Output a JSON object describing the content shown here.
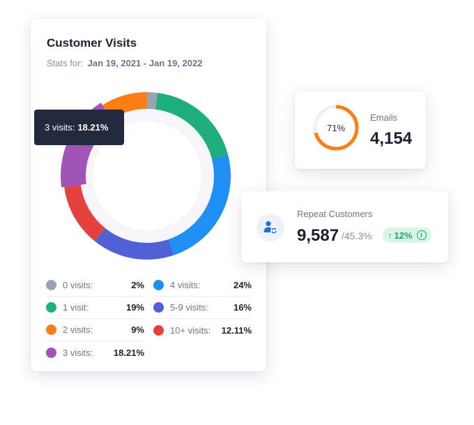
{
  "visits_card": {
    "title": "Customer Visits",
    "stats_prefix": "Stats for:",
    "date_range": "Jan 19, 2021 - Jan 19, 2022"
  },
  "tooltip": {
    "label": "3 visits:",
    "value": "18.21%"
  },
  "chart_data": {
    "type": "pie",
    "style": "donut",
    "title": "",
    "highlighted": "3 visits",
    "categories": [
      "0 visits",
      "1 visit",
      "4 visits",
      "5-9 visits",
      "10+ visits",
      "3 visits",
      "2 visits"
    ],
    "values": [
      2,
      19,
      24,
      16,
      12.11,
      18.21,
      9
    ],
    "colors": [
      "#9aa3b4",
      "#1eaf7c",
      "#1f8ff5",
      "#5160d6",
      "#e5423f",
      "#a155b9",
      "#fd7e15"
    ]
  },
  "legend": {
    "left": [
      {
        "label": "0 visits:",
        "value": "2%",
        "color": "#9aa3b4"
      },
      {
        "label": "1 visit:",
        "value": "19%",
        "color": "#1eaf7c"
      },
      {
        "label": "2 visits:",
        "value": "9%",
        "color": "#fd7e15"
      },
      {
        "label": "3 visits:",
        "value": "18.21%",
        "color": "#a155b9"
      }
    ],
    "right": [
      {
        "label": "4 visits:",
        "value": "24%",
        "color": "#1f8ff5"
      },
      {
        "label": "5-9 visits:",
        "value": "16%",
        "color": "#5160d6"
      },
      {
        "label": "10+ visits:",
        "value": "12.11%",
        "color": "#e5423f"
      }
    ]
  },
  "emails": {
    "label": "Emails",
    "value": "4,154",
    "percent_label": "71%",
    "percent": 71,
    "ring_color": "#fd7e15"
  },
  "repeat": {
    "label": "Repeat Customers",
    "value": "9,587",
    "sub": "/45.3%",
    "badge_arrow": "↑",
    "badge_value": "12%",
    "badge_info": "i",
    "icon": "repeat-user-icon"
  }
}
